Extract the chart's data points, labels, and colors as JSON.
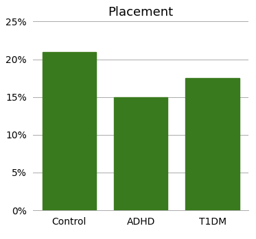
{
  "title": "Placement",
  "categories": [
    "Control",
    "ADHD",
    "T1DM"
  ],
  "values": [
    0.21,
    0.15,
    0.175
  ],
  "bar_color": "#3a7a1e",
  "ylim": [
    0,
    0.25
  ],
  "yticks": [
    0,
    0.05,
    0.1,
    0.15,
    0.2,
    0.25
  ],
  "ytick_labels": [
    "0%",
    "5%",
    "10%",
    "15%",
    "20%",
    "25%"
  ],
  "background_color": "#ffffff",
  "title_fontsize": 13,
  "tick_fontsize": 10,
  "bar_width": 0.75,
  "grid_color": "#aaaaaa",
  "grid_linewidth": 0.7
}
